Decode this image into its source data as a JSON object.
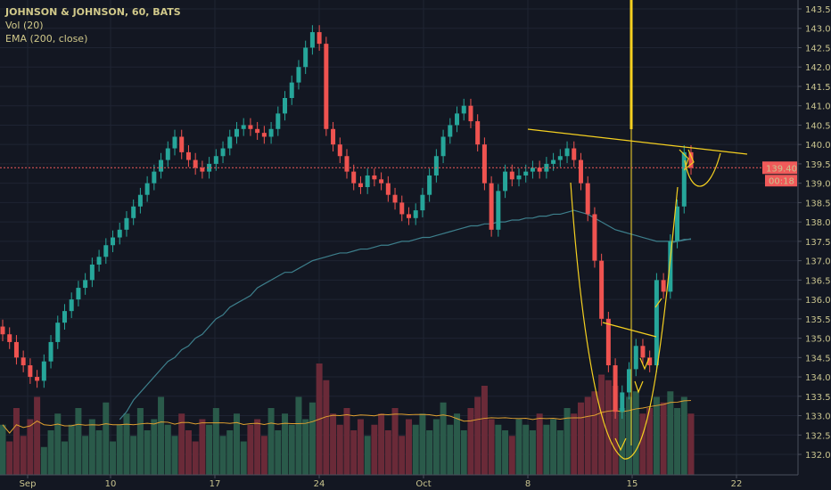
{
  "legend": {
    "symbol": "JOHNSON & JOHNSON, 60, BATS",
    "volume": "Vol (20)",
    "ema": "EMA (200, close)"
  },
  "colors": {
    "background": "#131722",
    "up": "#26a69a",
    "down": "#ef5350",
    "volume_up": "#2a5a4a",
    "volume_down": "#6a2a38",
    "ema": "#3d7f8c",
    "volume_ma": "#e0a030",
    "drawing": "#f5d020",
    "last_price": "#f05a5a"
  },
  "chart_data": {
    "type": "candlestick",
    "title": "JOHNSON & JOHNSON, 60, BATS",
    "ylim": [
      131.75,
      143.75
    ],
    "y_ticks": [
      "143.50",
      "143.00",
      "142.50",
      "142.00",
      "141.50",
      "141.00",
      "140.50",
      "140.00",
      "139.50",
      "139.00",
      "138.50",
      "138.00",
      "137.50",
      "137.00",
      "136.50",
      "136.00",
      "135.50",
      "135.00",
      "134.50",
      "134.00",
      "133.50",
      "133.00",
      "132.50",
      "132.00"
    ],
    "x_ticks": [
      "Sep",
      "10",
      "17",
      "24",
      "Oct",
      "8",
      "15",
      "22"
    ],
    "last_price": "139.40",
    "countdown": "00:18",
    "close": [
      135.1,
      134.9,
      134.5,
      134.3,
      134.0,
      133.9,
      134.4,
      134.9,
      135.4,
      135.7,
      136.0,
      136.3,
      136.5,
      136.9,
      137.1,
      137.4,
      137.6,
      137.8,
      138.1,
      138.4,
      138.7,
      139.0,
      139.3,
      139.6,
      139.9,
      140.2,
      139.8,
      139.6,
      139.4,
      139.3,
      139.5,
      139.7,
      139.9,
      140.2,
      140.4,
      140.5,
      140.4,
      140.3,
      140.2,
      140.4,
      140.8,
      141.2,
      141.6,
      142.0,
      142.5,
      142.9,
      142.6,
      140.4,
      140.0,
      139.7,
      139.3,
      139.0,
      138.9,
      139.2,
      139.1,
      139.0,
      138.7,
      138.5,
      138.2,
      138.1,
      138.3,
      138.7,
      139.2,
      139.7,
      140.2,
      140.5,
      140.8,
      141.0,
      140.6,
      140.0,
      139.0,
      137.8,
      138.8,
      139.3,
      139.1,
      139.2,
      139.3,
      139.4,
      139.3,
      139.5,
      139.6,
      139.7,
      139.9,
      139.6,
      139.0,
      138.2,
      137.0,
      135.5,
      134.3,
      133.1,
      133.6,
      134.2,
      134.8,
      134.5,
      134.3,
      136.5,
      136.2,
      137.5,
      138.4,
      139.8,
      139.4
    ],
    "ema200": [
      null,
      null,
      null,
      null,
      null,
      null,
      null,
      null,
      null,
      null,
      null,
      null,
      null,
      null,
      null,
      null,
      null,
      132.9,
      133.1,
      133.4,
      133.6,
      133.8,
      134.0,
      134.2,
      134.4,
      134.5,
      134.7,
      134.8,
      135.0,
      135.1,
      135.3,
      135.5,
      135.6,
      135.8,
      135.9,
      136.0,
      136.1,
      136.3,
      136.4,
      136.5,
      136.6,
      136.7,
      136.7,
      136.8,
      136.9,
      137.0,
      137.05,
      137.1,
      137.15,
      137.2,
      137.2,
      137.25,
      137.3,
      137.3,
      137.35,
      137.4,
      137.4,
      137.45,
      137.5,
      137.5,
      137.55,
      137.6,
      137.6,
      137.65,
      137.7,
      137.75,
      137.8,
      137.85,
      137.9,
      137.9,
      137.95,
      137.95,
      138.0,
      138.0,
      138.05,
      138.05,
      138.1,
      138.1,
      138.15,
      138.15,
      138.2,
      138.2,
      138.25,
      138.3,
      138.25,
      138.2,
      138.1,
      138.0,
      137.9,
      137.8,
      137.75,
      137.7,
      137.65,
      137.6,
      137.55,
      137.5,
      137.5,
      137.5,
      137.5,
      137.55,
      137.55
    ],
    "volume_relative": [
      45,
      30,
      60,
      35,
      50,
      70,
      25,
      40,
      55,
      30,
      45,
      60,
      35,
      50,
      40,
      65,
      30,
      45,
      55,
      35,
      60,
      40,
      50,
      70,
      45,
      35,
      55,
      40,
      30,
      50,
      45,
      60,
      35,
      40,
      55,
      30,
      45,
      50,
      35,
      60,
      40,
      55,
      45,
      70,
      50,
      65,
      100,
      85,
      55,
      45,
      60,
      40,
      50,
      35,
      45,
      55,
      40,
      60,
      35,
      50,
      45,
      55,
      40,
      50,
      65,
      45,
      55,
      40,
      60,
      70,
      80,
      50,
      45,
      40,
      35,
      50,
      45,
      40,
      55,
      45,
      50,
      40,
      60,
      55,
      65,
      70,
      75,
      90,
      85,
      80,
      60,
      70,
      75,
      55,
      60,
      70,
      65,
      75,
      60,
      70,
      55
    ]
  }
}
